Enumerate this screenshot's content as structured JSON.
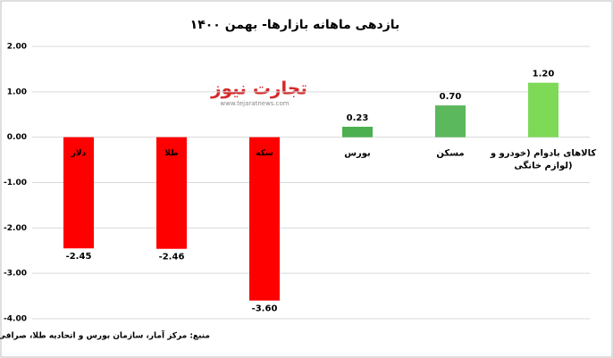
{
  "chart_data": {
    "type": "bar",
    "title": "بازدهی ماهانه بازارها- بهمن ۱۴۰۰",
    "categories": [
      "دلار",
      "طلا",
      "سکه",
      "بورس",
      "مسکن",
      "کالاهای بادوام (خودرو و لوازم خانگی)"
    ],
    "values": [
      -2.45,
      -2.46,
      -3.6,
      0.23,
      0.7,
      1.2
    ],
    "value_labels": [
      "-2.45",
      "-2.46",
      "-3.60",
      "0.23",
      "0.70",
      "1.20"
    ],
    "colors": [
      "#ff0000",
      "#ff0000",
      "#ff0000",
      "#4caf50",
      "#5cb85c",
      "#7ed957"
    ],
    "ylim": [
      -4,
      2
    ],
    "yticks": [
      {
        "value": -4,
        "label": "-4.00"
      },
      {
        "value": -3,
        "label": "-3.00"
      },
      {
        "value": -2,
        "label": "-2.00"
      },
      {
        "value": -1,
        "label": "-1.00"
      },
      {
        "value": 0,
        "label": "0.00"
      },
      {
        "value": 1,
        "label": "1.00"
      },
      {
        "value": 2,
        "label": "2.00"
      }
    ],
    "grid": true,
    "source": "منبع: مرکز آمار، سازمان بورس و اتحادیه طلا، صرافی ملی",
    "watermark": {
      "logo": "تجارت نیوز",
      "url": "www.tejaratnews.com"
    }
  }
}
